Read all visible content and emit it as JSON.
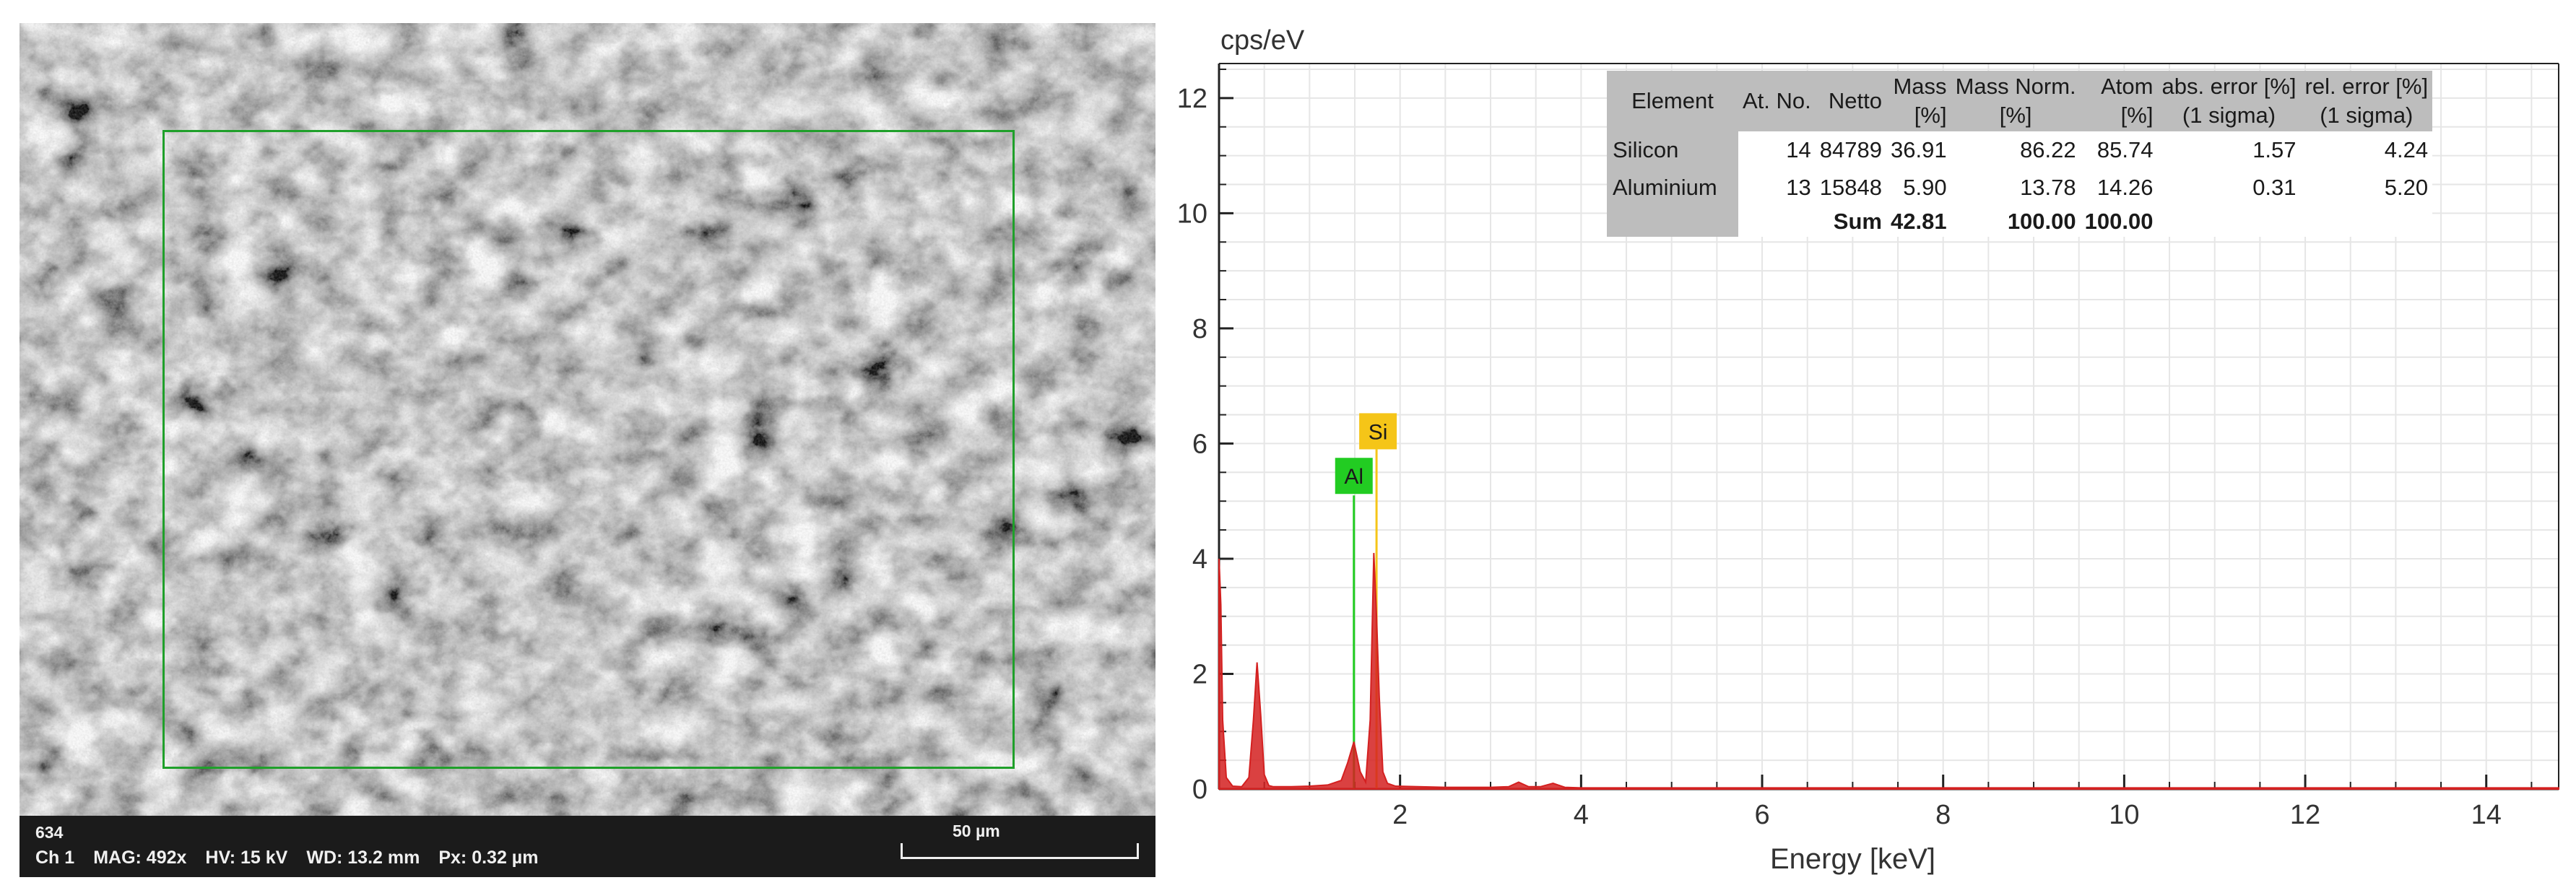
{
  "sem": {
    "image_id": "634",
    "channel": "Ch 1",
    "magnification": "MAG: 492x",
    "voltage": "HV: 15 kV",
    "working_distance": "WD: 13.2 mm",
    "pixel_size": "Px: 0.32 µm",
    "scale_bar_label": "50 µm",
    "roi_color": "#1fa02a"
  },
  "eds_table": {
    "headers": [
      "Element",
      "At. No.",
      "Netto",
      "Mass\n[%]",
      "Mass Norm.\n[%]",
      "Atom\n[%]",
      "abs. error [%]\n(1 sigma)",
      "rel. error [%]\n(1 sigma)"
    ],
    "rows": [
      {
        "element": "Silicon",
        "at_no": "14",
        "netto": "84789",
        "mass": "36.91",
        "mass_norm": "86.22",
        "atom": "85.74",
        "abs_error": "1.57",
        "rel_error": "4.24"
      },
      {
        "element": "Aluminium",
        "at_no": "13",
        "netto": "15848",
        "mass": "5.90",
        "mass_norm": "13.78",
        "atom": "14.26",
        "abs_error": "0.31",
        "rel_error": "5.20"
      }
    ],
    "sum_row": {
      "label": "Sum",
      "mass": "42.81",
      "mass_norm": "100.00",
      "atom": "100.00"
    }
  },
  "chart_data": {
    "type": "line",
    "ylabel": "cps/eV",
    "xlabel": "Energy [keV]",
    "xlim": [
      0,
      14.8
    ],
    "ylim": [
      0,
      12.6
    ],
    "x_ticks": [
      2,
      4,
      6,
      8,
      10,
      12,
      14
    ],
    "y_ticks": [
      0,
      2,
      4,
      6,
      8,
      10,
      12
    ],
    "grid": true,
    "series": [
      {
        "color": "#d42020",
        "x": [
          0.0,
          0.02,
          0.04,
          0.08,
          0.15,
          0.25,
          0.33,
          0.38,
          0.42,
          0.46,
          0.5,
          0.55,
          0.6,
          0.8,
          1.0,
          1.2,
          1.35,
          1.42,
          1.49,
          1.56,
          1.62,
          1.67,
          1.71,
          1.74,
          1.77,
          1.81,
          1.86,
          1.95,
          2.2,
          2.5,
          3.0,
          3.2,
          3.31,
          3.42,
          3.55,
          3.69,
          3.82,
          4.0,
          5.0,
          8.0,
          14.8
        ],
        "y": [
          4.0,
          3.2,
          1.2,
          0.2,
          0.05,
          0.04,
          0.2,
          1.2,
          2.2,
          1.3,
          0.25,
          0.06,
          0.04,
          0.04,
          0.05,
          0.07,
          0.15,
          0.45,
          0.82,
          0.3,
          0.12,
          1.2,
          4.1,
          3.0,
          1.6,
          0.3,
          0.1,
          0.05,
          0.04,
          0.03,
          0.03,
          0.04,
          0.12,
          0.04,
          0.04,
          0.1,
          0.03,
          0.02,
          0.02,
          0.02,
          0.02
        ]
      }
    ],
    "element_markers": [
      {
        "label": "Al",
        "energy": 1.49,
        "color": "#22cc22"
      },
      {
        "label": "Si",
        "energy": 1.74,
        "color": "#f5c518"
      }
    ]
  }
}
